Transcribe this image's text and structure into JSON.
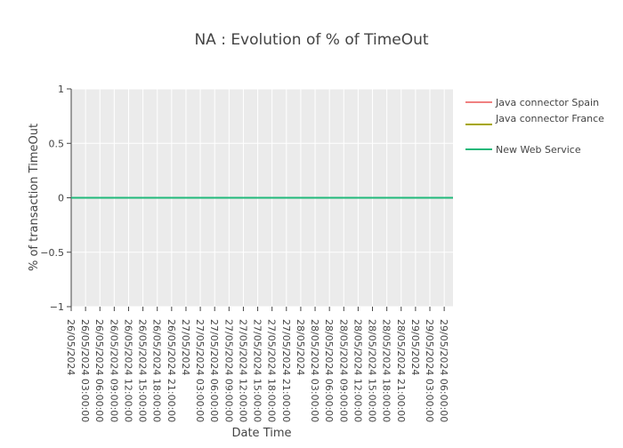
{
  "chart_data": {
    "type": "line",
    "title": "NA : Evolution of % of TimeOut",
    "xlabel": "Date Time",
    "ylabel": "% of transaction TimeOut",
    "ylim": [
      -1,
      1
    ],
    "yticks": [
      1,
      0.5,
      0,
      -0.5,
      -1
    ],
    "ytick_labels": [
      "1",
      "0.5",
      "0",
      "−0.5",
      "−1"
    ],
    "x_categories": [
      "26/05/2024",
      "26/05/2024 03:00:00",
      "26/05/2024 06:00:00",
      "26/05/2024 09:00:00",
      "26/05/2024 12:00:00",
      "26/05/2024 15:00:00",
      "26/05/2024 18:00:00",
      "26/05/2024 21:00:00",
      "27/05/2024",
      "27/05/2024 03:00:00",
      "27/05/2024 06:00:00",
      "27/05/2024 09:00:00",
      "27/05/2024 12:00:00",
      "27/05/2024 15:00:00",
      "27/05/2024 18:00:00",
      "27/05/2024 21:00:00",
      "28/05/2024",
      "28/05/2024 03:00:00",
      "28/05/2024 06:00:00",
      "28/05/2024 09:00:00",
      "28/05/2024 12:00:00",
      "28/05/2024 15:00:00",
      "28/05/2024 18:00:00",
      "28/05/2024 21:00:00",
      "29/05/2024",
      "29/05/2024 03:00:00",
      "29/05/2024 06:00:00"
    ],
    "grid": true,
    "legend_position": "right",
    "series": [
      {
        "name": "Java connector Spain",
        "color": "#f08080",
        "values": [
          0,
          0,
          0,
          0,
          0,
          0,
          0,
          0,
          0,
          0,
          0,
          0,
          0,
          0,
          0,
          0,
          0,
          0,
          0,
          0,
          0,
          0,
          0,
          0,
          0,
          0,
          0
        ]
      },
      {
        "name": "Java connector France",
        "color": "#a6a600",
        "values": [
          0,
          0,
          0,
          0,
          0,
          0,
          0,
          0,
          0,
          0,
          0,
          0,
          0,
          0,
          0,
          0,
          0,
          0,
          0,
          0,
          0,
          0,
          0,
          0,
          0,
          0,
          0
        ]
      },
      {
        "name": "New Web Service",
        "color": "#1fb87a",
        "values": [
          0,
          0,
          0,
          0,
          0,
          0,
          0,
          0,
          0,
          0,
          0,
          0,
          0,
          0,
          0,
          0,
          0,
          0,
          0,
          0,
          0,
          0,
          0,
          0,
          0,
          0,
          0
        ]
      }
    ]
  }
}
